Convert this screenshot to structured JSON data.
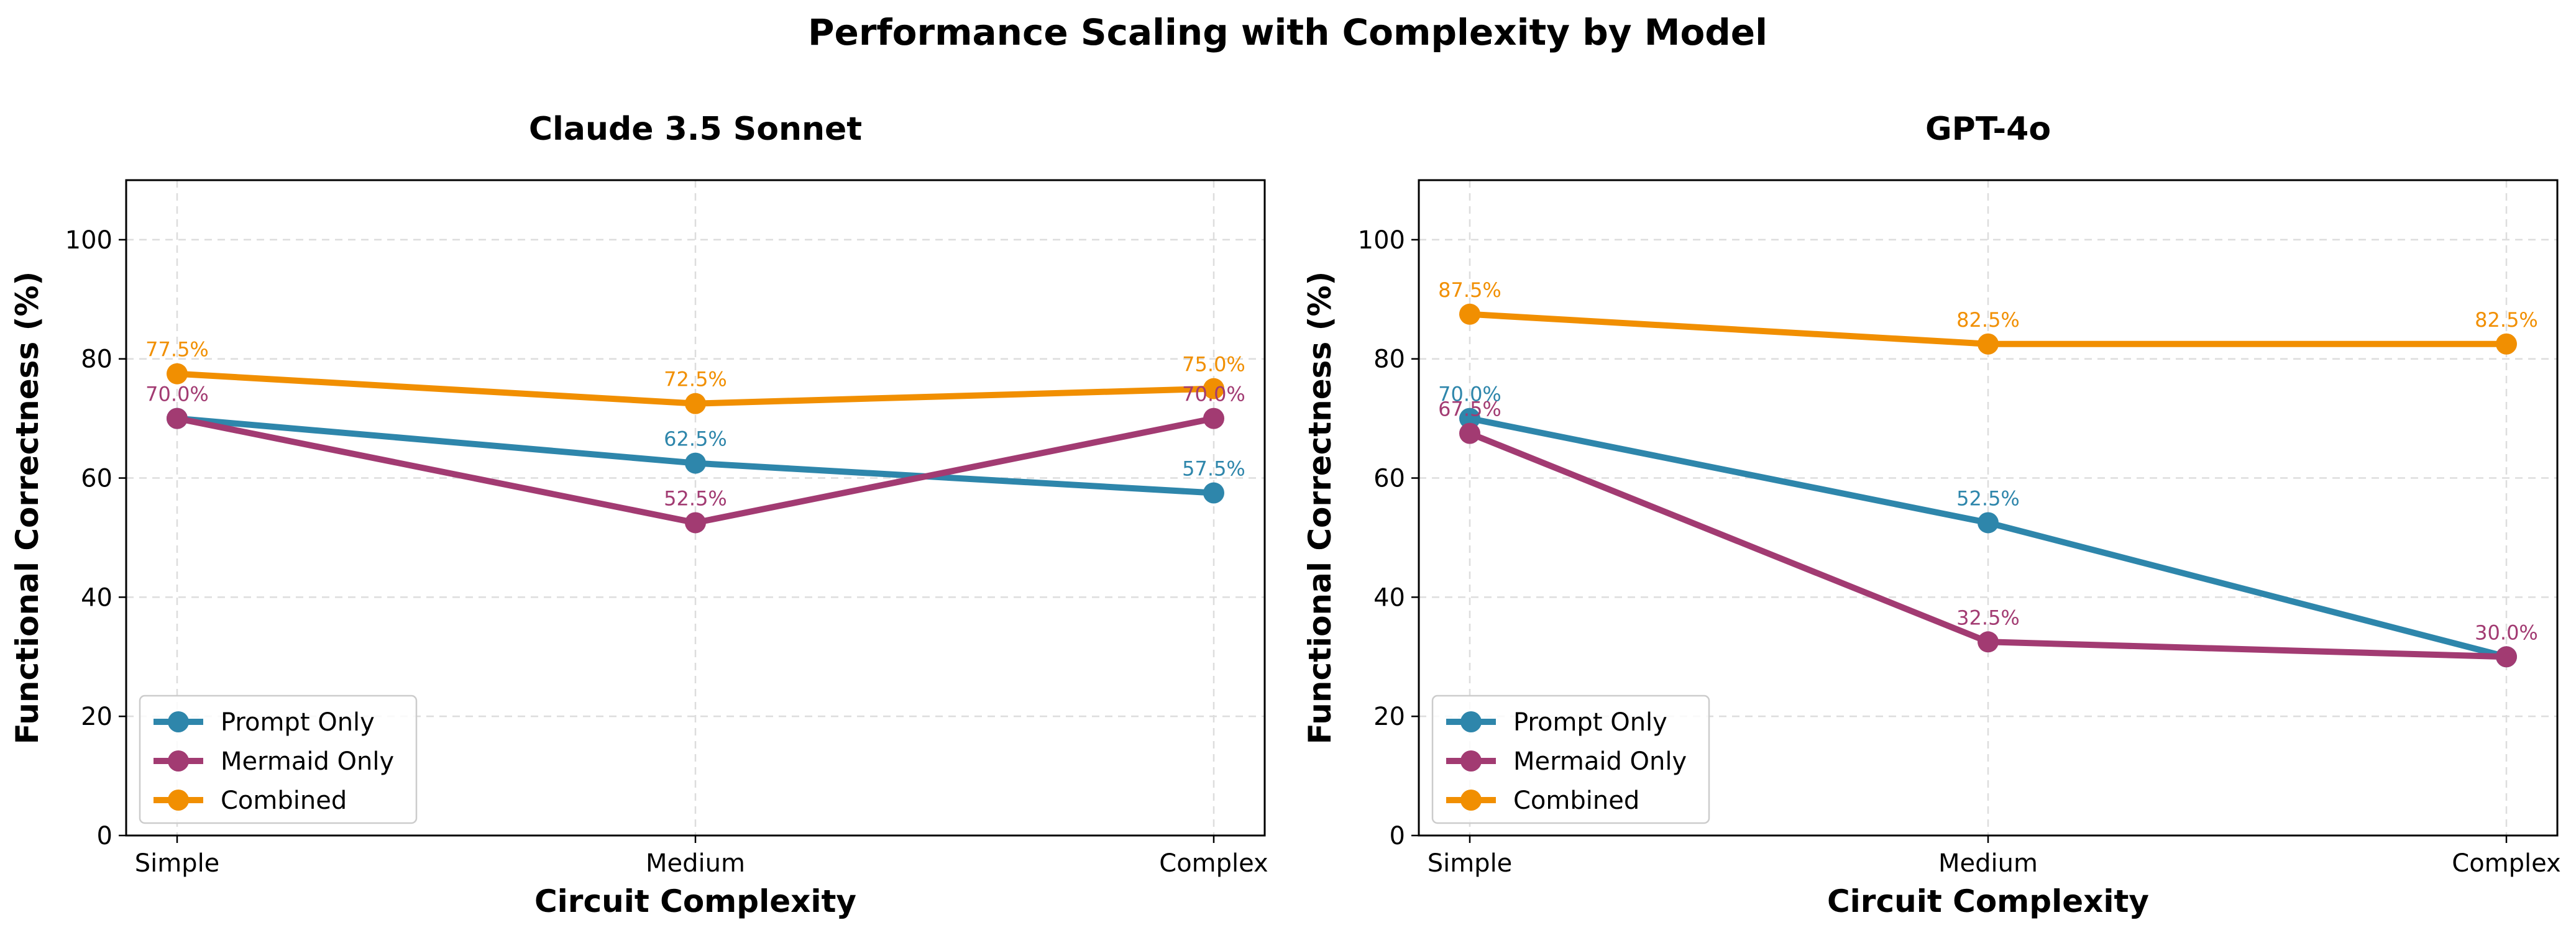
{
  "title": "Performance Scaling with Complexity by Model",
  "colors": {
    "Prompt Only": "#2e86ab",
    "Mermaid Only": "#a23b72",
    "Combined": "#f18f01"
  },
  "chart_data": [
    {
      "type": "line",
      "title": "Claude 3.5 Sonnet",
      "xlabel": "Circuit Complexity",
      "ylabel": "Functional Correctness (%)",
      "categories": [
        "Simple",
        "Medium",
        "Complex"
      ],
      "ylim": [
        0,
        110
      ],
      "yticks": [
        0,
        20,
        40,
        60,
        80,
        100
      ],
      "grid": true,
      "legend_position": "lower-left",
      "series": [
        {
          "name": "Prompt Only",
          "values": [
            70.0,
            62.5,
            57.5
          ],
          "labels": [
            "",
            "62.5%",
            "57.5%"
          ]
        },
        {
          "name": "Mermaid Only",
          "values": [
            70.0,
            52.5,
            70.0
          ],
          "labels": [
            "70.0%",
            "52.5%",
            "70.0%"
          ]
        },
        {
          "name": "Combined",
          "values": [
            77.5,
            72.5,
            75.0
          ],
          "labels": [
            "77.5%",
            "72.5%",
            "75.0%"
          ]
        }
      ]
    },
    {
      "type": "line",
      "title": "GPT-4o",
      "xlabel": "Circuit Complexity",
      "ylabel": "Functional Correctness (%)",
      "categories": [
        "Simple",
        "Medium",
        "Complex"
      ],
      "ylim": [
        0,
        110
      ],
      "yticks": [
        0,
        20,
        40,
        60,
        80,
        100
      ],
      "grid": true,
      "legend_position": "lower-left",
      "series": [
        {
          "name": "Prompt Only",
          "values": [
            70.0,
            52.5,
            30.0
          ],
          "labels": [
            "70.0%",
            "52.5%",
            ""
          ]
        },
        {
          "name": "Mermaid Only",
          "values": [
            67.5,
            32.5,
            30.0
          ],
          "labels": [
            "67.5%",
            "32.5%",
            "30.0%"
          ]
        },
        {
          "name": "Combined",
          "values": [
            87.5,
            82.5,
            82.5
          ],
          "labels": [
            "87.5%",
            "82.5%",
            "82.5%"
          ]
        }
      ]
    }
  ]
}
